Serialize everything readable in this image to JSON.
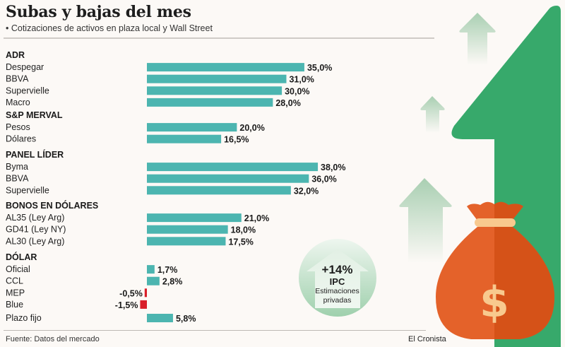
{
  "header": {
    "title": "Subas y bajas del mes",
    "subtitle": "• Cotizaciones de activos en plaza local y Wall Street"
  },
  "footer": {
    "source": "Fuente: Datos del mercado",
    "brand": "El Cronista"
  },
  "ipc_badge": {
    "value": "+14%",
    "label": "IPC",
    "note_line1": "Estimaciones",
    "note_line2": "privadas"
  },
  "colors": {
    "positive": "#4cb5b0",
    "negative": "#d91f2a",
    "big_arrow": "#37a96b",
    "bag": "#e4622a",
    "bag_shade": "#d55218",
    "bag_accent": "#f8c98e"
  },
  "chart_data": {
    "type": "bar",
    "orientation": "horizontal",
    "title": "Subas y bajas del mes",
    "subtitle": "Cotizaciones de activos en plaza local y Wall Street",
    "unit": "%",
    "xlim": [
      -1.5,
      38
    ],
    "groups": [
      {
        "name": "ADR",
        "items": [
          {
            "label": "Despegar",
            "value": 35.0,
            "display": "35,0%"
          },
          {
            "label": "BBVA",
            "value": 31.0,
            "display": "31,0%"
          },
          {
            "label": "Supervielle",
            "value": 30.0,
            "display": "30,0%"
          },
          {
            "label": "Macro",
            "value": 28.0,
            "display": "28,0%"
          }
        ]
      },
      {
        "name": "S&P MERVAL",
        "items": [
          {
            "label": "Pesos",
            "value": 20.0,
            "display": "20,0%"
          },
          {
            "label": "Dólares",
            "value": 16.5,
            "display": "16,5%"
          }
        ]
      },
      {
        "name": "PANEL LÍDER",
        "items": [
          {
            "label": "Byma",
            "value": 38.0,
            "display": "38,0%"
          },
          {
            "label": "BBVA",
            "value": 36.0,
            "display": "36,0%"
          },
          {
            "label": "Supervielle",
            "value": 32.0,
            "display": "32,0%"
          }
        ]
      },
      {
        "name": "BONOS EN DÓLARES",
        "items": [
          {
            "label": "AL35 (Ley Arg)",
            "value": 21.0,
            "display": "21,0%"
          },
          {
            "label": "GD41 (Ley NY)",
            "value": 18.0,
            "display": "18,0%"
          },
          {
            "label": "AL30 (Ley Arg)",
            "value": 17.5,
            "display": "17,5%"
          }
        ]
      },
      {
        "name": "DÓLAR",
        "items": [
          {
            "label": "Oficial",
            "value": 1.7,
            "display": "1,7%"
          },
          {
            "label": "CCL",
            "value": 2.8,
            "display": "2,8%"
          },
          {
            "label": "MEP",
            "value": -0.5,
            "display": "-0,5%"
          },
          {
            "label": "Blue",
            "value": -1.5,
            "display": "-1,5%"
          }
        ]
      },
      {
        "name": "",
        "items": [
          {
            "label": "Plazo fijo",
            "value": 5.8,
            "display": "5,8%"
          }
        ]
      }
    ]
  }
}
